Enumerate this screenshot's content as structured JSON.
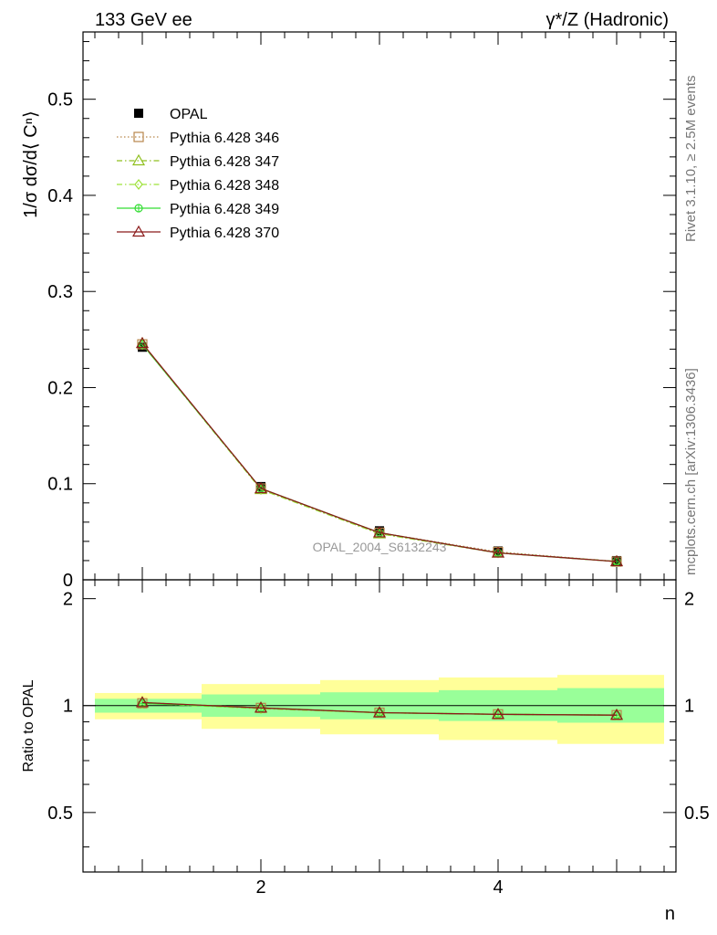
{
  "header": {
    "left_title": "133 GeV ee",
    "right_title": "γ*/Z (Hadronic)"
  },
  "side_labels": {
    "rivet": "Rivet 3.1.10, ≥ 2.5M events",
    "mcplots": "mcplots.cern.ch [arXiv:1306.3436]"
  },
  "watermark": "OPAL_2004_S6132243",
  "legend": [
    {
      "label": "OPAL",
      "color": "#000000",
      "marker": "filled-square",
      "line": "none"
    },
    {
      "label": "Pythia 6.428 346",
      "color": "#b8864b",
      "marker": "open-square",
      "line": "dotted"
    },
    {
      "label": "Pythia 6.428 347",
      "color": "#8fbf1e",
      "marker": "open-triangle",
      "line": "dashdot"
    },
    {
      "label": "Pythia 6.428 348",
      "color": "#9ee23a",
      "marker": "open-diamond",
      "line": "dashdot"
    },
    {
      "label": "Pythia 6.428 349",
      "color": "#33dd33",
      "marker": "open-circle-cross",
      "line": "solid"
    },
    {
      "label": "Pythia 6.428 370",
      "color": "#8b1a1a",
      "marker": "open-triangle",
      "line": "solid"
    }
  ],
  "chart_data": [
    {
      "type": "scatter",
      "panel": "main",
      "ylabel": "1/σ dσ/d⟨ Cⁿ⟩",
      "xlim": [
        0.5,
        5.5
      ],
      "ylim": [
        0,
        0.57
      ],
      "y_ticks": [
        0,
        0.1,
        0.2,
        0.3,
        0.4,
        0.5
      ],
      "y_tick_labels": [
        "0",
        "0.1",
        "0.2",
        "0.3",
        "0.4",
        "0.5"
      ],
      "x": [
        1,
        2,
        3,
        4,
        5
      ],
      "series": [
        {
          "name": "OPAL",
          "values": [
            0.242,
            0.097,
            0.051,
            0.03,
            0.02
          ],
          "errors": [
            0.004,
            0.004,
            0.003,
            0.003,
            0.003
          ]
        },
        {
          "name": "Pythia 6.428 346",
          "values": [
            0.245,
            0.095,
            0.049,
            0.029,
            0.019
          ]
        },
        {
          "name": "Pythia 6.428 347",
          "values": [
            0.246,
            0.094,
            0.048,
            0.028,
            0.019
          ]
        },
        {
          "name": "Pythia 6.428 348",
          "values": [
            0.245,
            0.094,
            0.048,
            0.028,
            0.019
          ]
        },
        {
          "name": "Pythia 6.428 349",
          "values": [
            0.245,
            0.095,
            0.049,
            0.028,
            0.019
          ]
        },
        {
          "name": "Pythia 6.428 370",
          "values": [
            0.246,
            0.095,
            0.049,
            0.028,
            0.019
          ]
        }
      ]
    },
    {
      "type": "line",
      "panel": "ratio",
      "ylabel": "Ratio to OPAL",
      "xlabel": "n",
      "xlim": [
        0.5,
        5.5
      ],
      "ylim": [
        0.34,
        2.26
      ],
      "y_ticks": [
        0.5,
        1,
        2
      ],
      "y_tick_labels": [
        "0.5",
        "1",
        "2"
      ],
      "x_ticks": [
        2,
        4
      ],
      "x_tick_labels": [
        "2",
        "4"
      ],
      "x": [
        1,
        2,
        3,
        4,
        5
      ],
      "bands": [
        {
          "x0": 0.6,
          "x1": 1.5,
          "inner": [
            0.955,
            1.045
          ],
          "outer": [
            0.915,
            1.085
          ]
        },
        {
          "x0": 1.5,
          "x1": 2.5,
          "inner": [
            0.93,
            1.075
          ],
          "outer": [
            0.86,
            1.15
          ]
        },
        {
          "x0": 2.5,
          "x1": 3.5,
          "inner": [
            0.915,
            1.09
          ],
          "outer": [
            0.83,
            1.18
          ]
        },
        {
          "x0": 3.5,
          "x1": 4.5,
          "inner": [
            0.905,
            1.105
          ],
          "outer": [
            0.8,
            1.2
          ]
        },
        {
          "x0": 4.5,
          "x1": 5.4,
          "inner": [
            0.895,
            1.12
          ],
          "outer": [
            0.78,
            1.22
          ]
        }
      ],
      "series": [
        {
          "name": "Pythia 6.428 346",
          "values": [
            1.015,
            0.985,
            0.955,
            0.945,
            0.94
          ]
        },
        {
          "name": "Pythia 6.428 347",
          "values": [
            1.02,
            0.985,
            0.955,
            0.945,
            0.94
          ]
        },
        {
          "name": "Pythia 6.428 348",
          "values": [
            1.015,
            0.98,
            0.955,
            0.945,
            0.94
          ]
        },
        {
          "name": "Pythia 6.428 349",
          "values": [
            1.015,
            0.985,
            0.955,
            0.945,
            0.94
          ]
        },
        {
          "name": "Pythia 6.428 370",
          "values": [
            1.02,
            0.985,
            0.955,
            0.945,
            0.94
          ]
        }
      ]
    }
  ]
}
